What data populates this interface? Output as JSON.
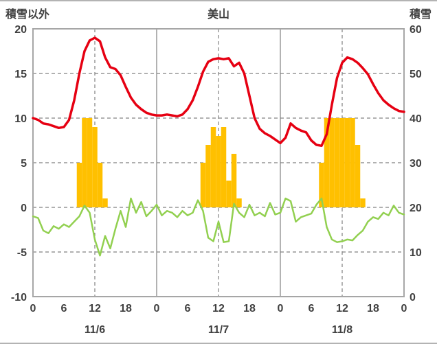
{
  "header": {
    "left_axis_label": "積雪以外",
    "title": "美山",
    "right_axis_label": "積雪"
  },
  "chart_data": {
    "type": "line+bar",
    "title": "美山",
    "grid": true,
    "legend_position": "none",
    "colors": {
      "red_line": "#e60012",
      "green_line": "#92d050",
      "bars": "#ffc000",
      "grid": "#808080",
      "border": "#a6a6a6",
      "text": "#404040"
    },
    "left_axis": {
      "label": "積雪以外",
      "min": -10,
      "max": 20,
      "ticks": [
        20,
        15,
        10,
        5,
        0,
        -5,
        -10
      ]
    },
    "right_axis": {
      "label": "積雪",
      "min": 0,
      "max": 60,
      "ticks": [
        60,
        50,
        40,
        30,
        20,
        10,
        0
      ]
    },
    "x_axis": {
      "min_hour": 0,
      "max_hour": 72,
      "tick_hours": [
        0,
        6,
        12,
        18,
        24,
        30,
        36,
        42,
        48,
        54,
        60,
        66,
        72
      ],
      "tick_labels": [
        "0",
        "6",
        "12",
        "18",
        "0",
        "6",
        "12",
        "18",
        "0",
        "6",
        "12",
        "18",
        "0"
      ],
      "solid_gridline_hours": [
        24,
        48
      ],
      "dashed_gridline_hours": [
        12,
        36,
        60
      ],
      "day_labels": [
        {
          "label": "11/6",
          "hour": 12
        },
        {
          "label": "11/7",
          "hour": 36
        },
        {
          "label": "11/8",
          "hour": 60
        }
      ]
    },
    "series": [
      {
        "name": "orange-bars-series",
        "type": "bar",
        "axis": "left",
        "color": "#ffc000",
        "values": [
          0,
          0,
          0,
          0,
          0,
          0,
          0,
          0,
          0,
          5,
          10,
          10,
          9,
          5,
          1,
          0,
          0,
          0,
          0,
          0,
          0,
          0,
          0,
          0,
          0,
          0,
          0,
          0,
          0,
          0,
          0,
          0,
          0,
          5,
          7,
          9,
          8,
          9,
          3,
          6,
          1,
          0,
          0,
          0,
          0,
          0,
          0,
          0,
          0,
          0,
          0,
          0,
          0,
          0,
          0,
          0,
          5,
          10,
          10,
          10,
          10,
          10,
          10,
          7,
          1,
          0,
          0,
          0,
          0,
          0,
          0,
          0,
          0
        ]
      },
      {
        "name": "green-line-series",
        "type": "line",
        "axis": "left",
        "color": "#92d050",
        "width": 2.5,
        "values": [
          -1.0,
          -1.2,
          -2.6,
          -2.9,
          -2.1,
          -2.4,
          -1.9,
          -2.2,
          -1.6,
          -1.0,
          0.2,
          -0.6,
          -3.6,
          -5.4,
          -3.2,
          -4.6,
          -2.4,
          -0.4,
          -2.2,
          1.0,
          -0.6,
          0.6,
          -1.0,
          -0.4,
          0.3,
          -0.9,
          -0.4,
          -0.6,
          -1.1,
          -0.4,
          -0.9,
          -0.6,
          0.8,
          -0.4,
          -3.4,
          -3.8,
          -1.6,
          -3.9,
          -3.8,
          0.4,
          -0.6,
          -1.1,
          0.3,
          -0.9,
          -0.6,
          -1.0,
          0.5,
          -0.8,
          -0.6,
          1.0,
          0.7,
          -1.6,
          -1.1,
          -0.9,
          -0.7,
          0.3,
          1.0,
          -2.2,
          -3.6,
          -3.9,
          -3.8,
          -3.6,
          -3.7,
          -3.1,
          -2.6,
          -1.6,
          -1.1,
          -1.3,
          -0.6,
          -0.9,
          0.2,
          -0.6,
          -0.8
        ]
      },
      {
        "name": "red-line-series",
        "type": "line",
        "axis": "left",
        "color": "#e60012",
        "width": 3.5,
        "values": [
          10.0,
          9.8,
          9.4,
          9.3,
          9.1,
          8.9,
          9.0,
          9.8,
          12.0,
          15.0,
          17.5,
          18.7,
          19.0,
          18.6,
          16.8,
          15.7,
          15.5,
          14.8,
          13.5,
          12.3,
          11.5,
          11.0,
          10.6,
          10.4,
          10.3,
          10.3,
          10.4,
          10.3,
          10.2,
          10.4,
          11.0,
          12.0,
          13.5,
          15.2,
          16.3,
          16.6,
          16.7,
          16.6,
          16.7,
          15.8,
          16.2,
          15.0,
          12.5,
          10.0,
          8.8,
          8.3,
          8.0,
          7.6,
          7.2,
          7.8,
          9.4,
          8.9,
          8.6,
          8.4,
          7.5,
          7.0,
          6.9,
          8.2,
          11.5,
          14.5,
          16.2,
          16.8,
          16.6,
          16.2,
          15.6,
          14.9,
          13.8,
          12.8,
          12.0,
          11.5,
          11.1,
          10.8,
          10.7
        ]
      }
    ]
  }
}
